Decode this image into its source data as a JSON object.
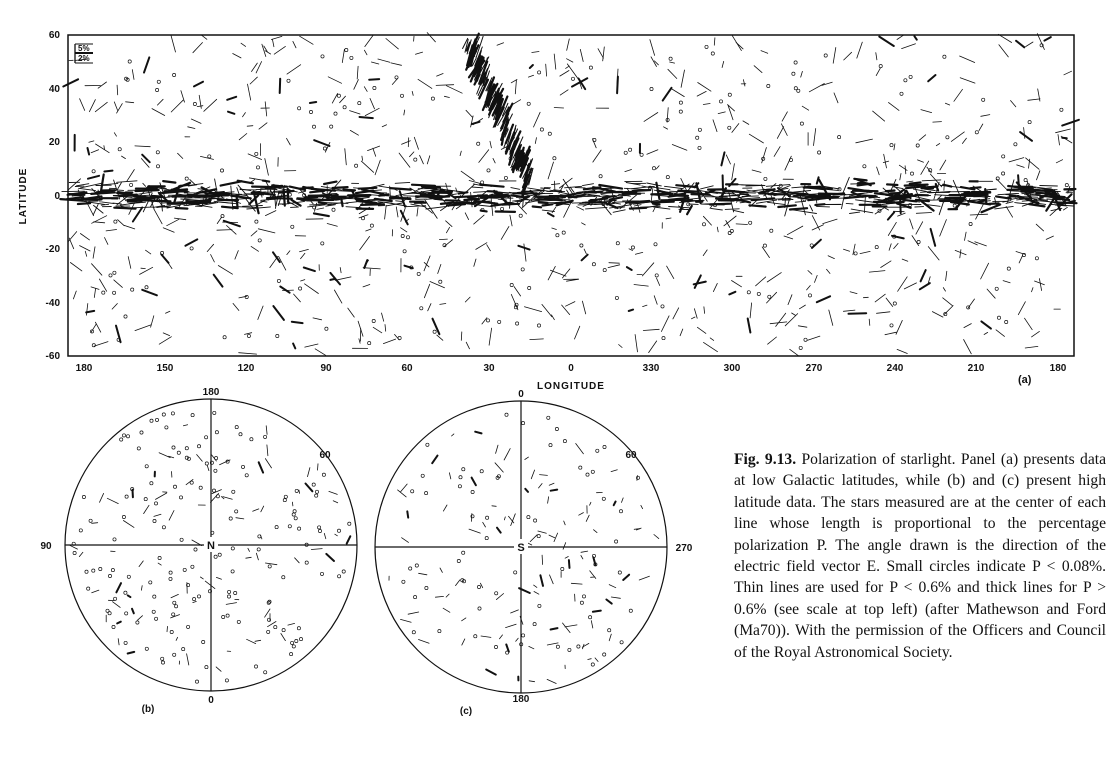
{
  "panel_a": {
    "ylabel": "LATITUDE",
    "xlabel": "LONGITUDE",
    "panel_label": "(a)",
    "y_ticks": [
      "60",
      "40",
      "20",
      "0",
      "-20",
      "-40",
      "-60"
    ],
    "x_ticks": [
      "180",
      "150",
      "120",
      "90",
      "60",
      "30",
      "0",
      "330",
      "300",
      "270",
      "240",
      "210",
      "180"
    ],
    "scale_legend": [
      "5%",
      "2%"
    ]
  },
  "panel_b": {
    "label": "(b)",
    "center": "N",
    "top": "180",
    "bottom": "0",
    "left": "90",
    "diag": "60"
  },
  "panel_c": {
    "label": "(c)",
    "center": "S",
    "top": "0",
    "bottom": "180",
    "right": "270",
    "diag": "60"
  },
  "caption": {
    "fig_label": "Fig. 9.13.",
    "text": "Polarization of starlight. Panel (a) presents data at low Galactic latitudes, while (b) and (c) present high latitude data. The stars measured are at the center of each line whose length is proportional to the percentage polarization P. The angle drawn is the direction of the electric field vector E. Small circles indicate P < 0.08%. Thin lines are used for P < 0.6% and thick lines for P > 0.6% (see scale at top left) (after Mathewson and Ford (Ma70)). With the permission of the Officers and Council of the Royal Astronomical Society."
  }
}
